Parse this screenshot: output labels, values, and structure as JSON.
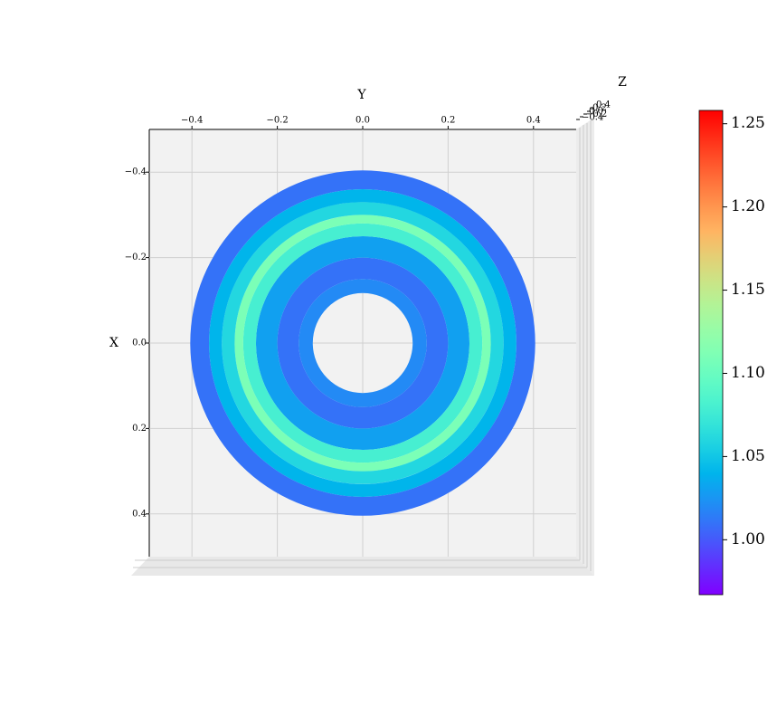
{
  "chart_data": {
    "type": "surface",
    "x_label": "X",
    "y_label": "Y",
    "z_label": "Z",
    "xlim": [
      -0.5,
      0.5
    ],
    "ylim": [
      -0.5,
      0.5
    ],
    "xticks": [
      {
        "value": -0.4,
        "label": "−0.4"
      },
      {
        "value": -0.2,
        "label": "−0.2"
      },
      {
        "value": 0,
        "label": "0.0"
      },
      0.2,
      0.4
    ],
    "yticks": [
      {
        "value": -0.4,
        "label": "−0.4"
      },
      {
        "value": -0.2,
        "label": "−0.2"
      },
      {
        "value": 0,
        "label": "0.0"
      },
      0.2,
      0.4
    ],
    "zticks": [
      {
        "value": -0.4,
        "label": "−0.4"
      },
      {
        "value": -0.2,
        "label": "−0.2"
      },
      {
        "value": 0,
        "label": "0.0"
      },
      0.2,
      0.4
    ],
    "colormap": "rainbow",
    "clim": [
      0.967,
      1.258
    ],
    "cticks": [
      {
        "value": 1,
        "label": "1.00"
      },
      {
        "value": 1.05,
        "label": "1.05"
      },
      {
        "value": 1.1,
        "label": "1.10"
      },
      {
        "value": 1.15,
        "label": "1.15"
      },
      {
        "value": 1.2,
        "label": "1.20"
      },
      {
        "value": 1.25,
        "label": "1.25"
      }
    ],
    "r": [
      0.117,
      0.15,
      0.2,
      0.25,
      0.28,
      0.3,
      0.33,
      0.36,
      0.404
    ],
    "values": [
      1.02,
      1.01,
      1.03,
      1.08,
      1.11,
      1.06,
      1.04,
      1.01
    ]
  }
}
